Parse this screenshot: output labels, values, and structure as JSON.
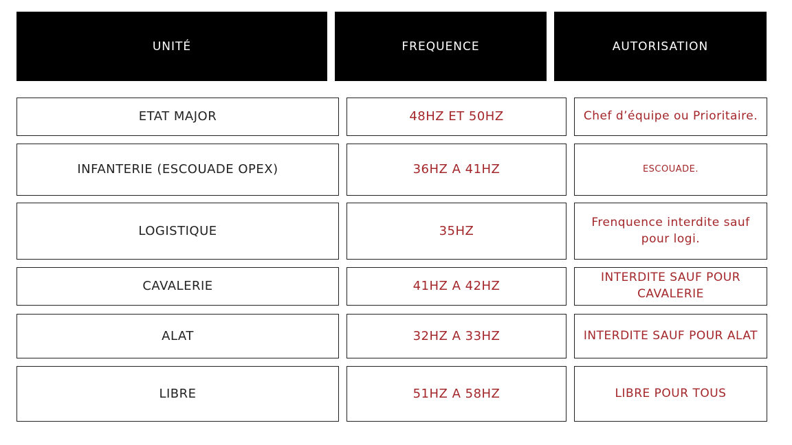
{
  "table": {
    "header": [
      "UNITÉ",
      "FREQUENCE",
      "AUTORISATION"
    ],
    "rows": [
      [
        "ETAT MAJOR",
        "48HZ ET 50HZ",
        "Chef d’équipe ou Prioritaire."
      ],
      [
        "INFANTERIE (ESCOUADE OPEX)",
        "36HZ A 41HZ",
        "ESCOUADE."
      ],
      [
        "LOGISTIQUE",
        "35HZ",
        "Frenquence interdite sauf pour logi."
      ],
      [
        "CAVALERIE",
        "41HZ A 42HZ",
        "INTERDITE SAUF POUR CAVALERIE"
      ],
      [
        "ALAT",
        "32HZ A 33HZ",
        "INTERDITE SAUF POUR ALAT"
      ],
      [
        "LIBRE",
        "51HZ A 58HZ",
        "LIBRE POUR TOUS"
      ]
    ]
  }
}
